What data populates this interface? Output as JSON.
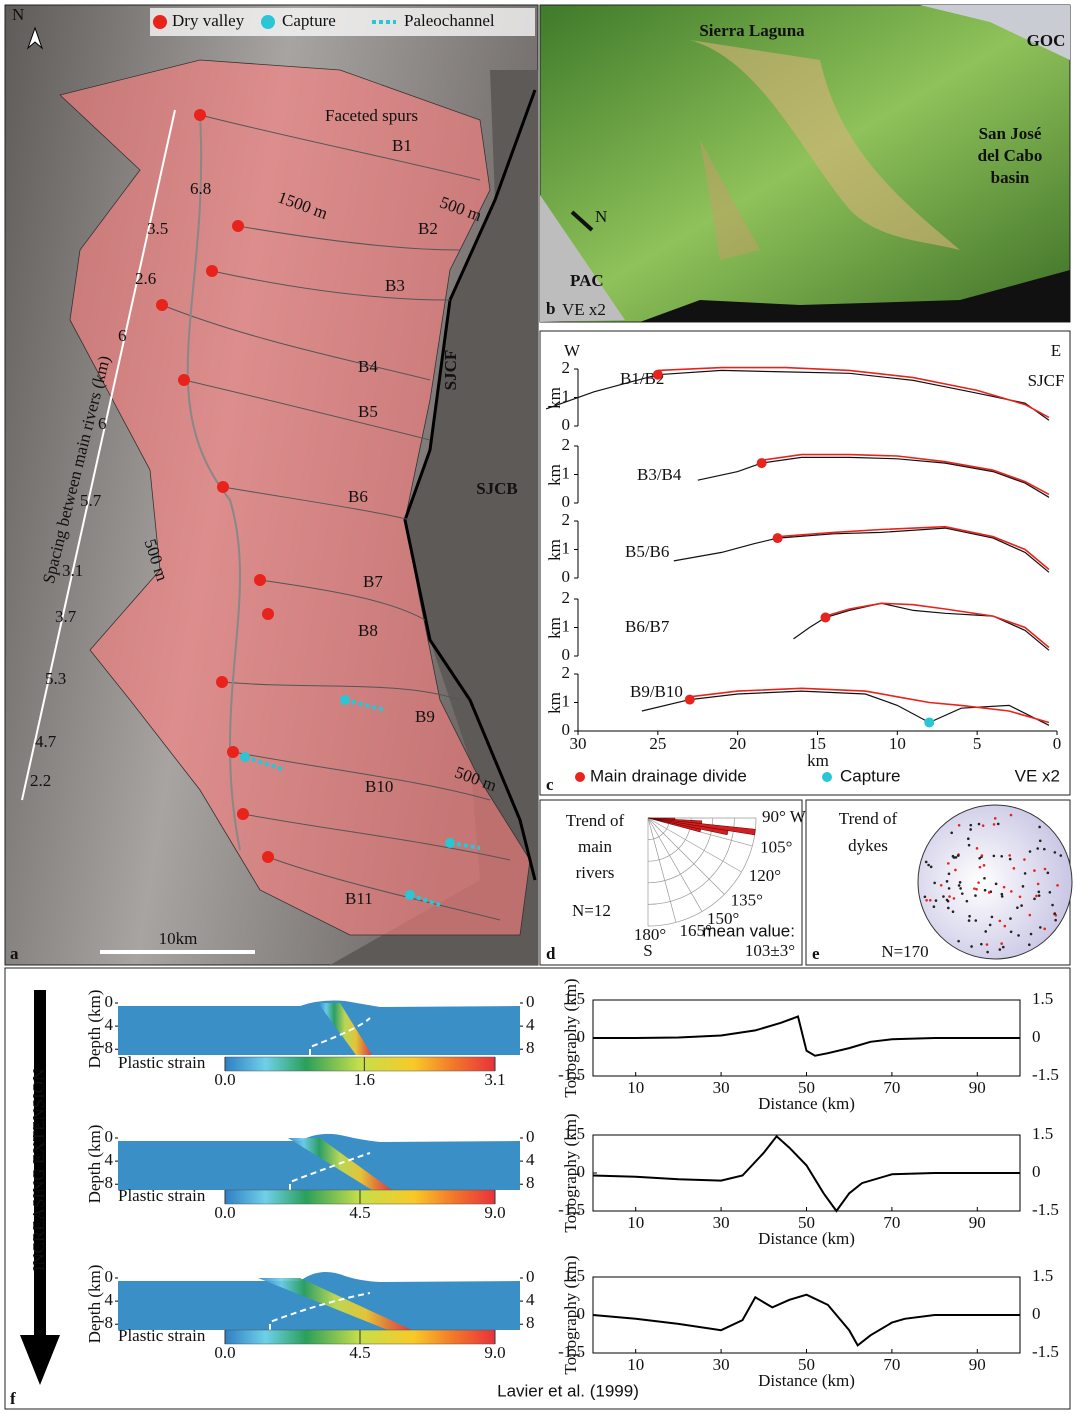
{
  "panel_a": {
    "letter": "a",
    "legend": [
      "Dry valley",
      "Capture",
      "Paleochannel"
    ],
    "north": "N",
    "faceted_spurs": "Faceted spurs",
    "basins": [
      "B1",
      "B2",
      "B3",
      "B4",
      "B5",
      "B6",
      "B7",
      "B8",
      "B9",
      "B10",
      "B11"
    ],
    "contours": [
      "1500 m",
      "500 m",
      "500 m",
      "500 m"
    ],
    "fault": "SJCF",
    "basin": "SJCB",
    "spacing_title": "Spacing between main rivers (km)",
    "spacing": [
      6.8,
      3.5,
      2.6,
      6,
      6,
      5.7,
      3.1,
      3.7,
      5.3,
      4.7,
      2.2
    ],
    "scale_bar": "10km"
  },
  "panel_b": {
    "letter": "b",
    "title": "Sierra Laguna",
    "goc": "GOC",
    "basin": [
      "San José",
      "del Cabo",
      "basin"
    ],
    "north": "N",
    "pac": "PAC",
    "exaggeration": "VE x2"
  },
  "panel_c": {
    "letter": "c",
    "west": "W",
    "east": "E",
    "fault": "SJCF",
    "legend": [
      "Main drainage divide",
      "Capture"
    ],
    "exaggeration": "VE x2"
  },
  "panel_d": {
    "letter": "d",
    "title": [
      "Trend of",
      "main",
      "rivers"
    ],
    "n": "N=12",
    "angles": [
      {
        "value": 90,
        "label": "90° W"
      },
      {
        "value": 105,
        "label": "105°"
      },
      {
        "value": 120,
        "label": "120°"
      },
      {
        "value": 135,
        "label": "135°"
      },
      {
        "value": 150,
        "label": "150°"
      },
      {
        "value": 165,
        "label": "165°"
      },
      {
        "value": 180,
        "label": "180°"
      }
    ],
    "south": "S",
    "mean_label": "mean value:",
    "mean": "103±3°",
    "bins": [
      90,
      93,
      96,
      99,
      102,
      105
    ],
    "counts": [
      1,
      2,
      4,
      3,
      2
    ],
    "rlim": [
      0,
      4
    ]
  },
  "panel_e": {
    "letter": "e",
    "title": [
      "Trend of",
      "dykes"
    ],
    "n": "N=170"
  },
  "panel_f": {
    "letter": "f",
    "arrow_label": "INCREASING EXTENSION",
    "credit": "Lavier et al. (1999)",
    "models": [
      {
        "depth_label": "Depth (km)",
        "depth_lim": [
          0,
          9
        ],
        "depth_ticks": [
          0,
          4,
          8
        ],
        "colorbar_label": "Plastic strain",
        "colorbar_lim": [
          0,
          3.1
        ],
        "colorbar_ticks": [
          {
            "value": 0,
            "label": "0.0"
          },
          1.6,
          3.1
        ]
      },
      {
        "depth_label": "Depth (km)",
        "depth_lim": [
          0,
          9
        ],
        "depth_ticks": [
          0,
          4,
          8
        ],
        "colorbar_label": "Plastic strain",
        "colorbar_lim": [
          0,
          9
        ],
        "colorbar_ticks": [
          {
            "value": 0,
            "label": "0.0"
          },
          4.5,
          {
            "value": 9,
            "label": "9.0"
          }
        ]
      },
      {
        "depth_label": "Depth (km)",
        "depth_lim": [
          0,
          9
        ],
        "depth_ticks": [
          0,
          4,
          8
        ],
        "colorbar_label": "Plastic strain",
        "colorbar_lim": [
          0,
          9
        ],
        "colorbar_ticks": [
          {
            "value": 0,
            "label": "0.0"
          },
          4.5,
          {
            "value": 9,
            "label": "9.0"
          }
        ]
      }
    ]
  },
  "chart_data": [
    {
      "type": "line",
      "title": "B1/B2",
      "y_label": "km",
      "xlim": [
        30,
        0
      ],
      "ylim": [
        0,
        2
      ],
      "yticks": [
        0,
        1,
        2
      ],
      "x": [
        32,
        29,
        25,
        21,
        17,
        13,
        9,
        5,
        2,
        0.5
      ],
      "series": [
        {
          "color": "#111111",
          "values": [
            0.6,
            1.2,
            1.8,
            1.95,
            1.9,
            1.85,
            1.6,
            1.15,
            0.8,
            0.2
          ]
        },
        {
          "color": "#e8231c",
          "values": [
            null,
            null,
            1.95,
            2.05,
            2.05,
            1.95,
            1.7,
            1.25,
            0.75,
            0.3
          ]
        }
      ],
      "divide": {
        "x": 25,
        "value": 1.8
      }
    },
    {
      "type": "line",
      "title": "B3/B4",
      "y_label": "km",
      "xlim": [
        30,
        0
      ],
      "ylim": [
        0,
        2
      ],
      "yticks": [
        0,
        1,
        2
      ],
      "x": [
        22.5,
        20,
        18.5,
        16,
        13,
        10,
        7,
        4,
        2,
        0.5
      ],
      "series": [
        {
          "color": "#111111",
          "values": [
            0.8,
            1.1,
            1.4,
            1.6,
            1.6,
            1.55,
            1.4,
            1.1,
            0.7,
            0.2
          ]
        },
        {
          "color": "#e8231c",
          "values": [
            null,
            null,
            1.5,
            1.7,
            1.7,
            1.65,
            1.45,
            1.15,
            0.75,
            0.3
          ]
        }
      ],
      "divide": {
        "x": 18.5,
        "value": 1.4
      }
    },
    {
      "type": "line",
      "title": "B5/B6",
      "y_label": "km",
      "xlim": [
        30,
        0
      ],
      "ylim": [
        0,
        2
      ],
      "yticks": [
        0,
        1,
        2
      ],
      "x": [
        24,
        21,
        19,
        17.5,
        14,
        11,
        7,
        4,
        2,
        0.5
      ],
      "series": [
        {
          "color": "#111111",
          "values": [
            0.6,
            0.9,
            1.2,
            1.4,
            1.55,
            1.6,
            1.75,
            1.4,
            0.9,
            0.2
          ]
        },
        {
          "color": "#e8231c",
          "values": [
            null,
            null,
            null,
            1.45,
            1.6,
            1.7,
            1.8,
            1.45,
            1.0,
            0.3
          ]
        }
      ],
      "divide": {
        "x": 17.5,
        "value": 1.4
      }
    },
    {
      "type": "line",
      "title": "B6/B7",
      "y_label": "km",
      "xlim": [
        30,
        0
      ],
      "ylim": [
        0,
        2
      ],
      "yticks": [
        0,
        1,
        2
      ],
      "x": [
        16.5,
        15.5,
        14.5,
        13,
        11,
        9,
        7,
        4,
        2,
        0.5
      ],
      "series": [
        {
          "color": "#111111",
          "values": [
            0.6,
            1.0,
            1.35,
            1.6,
            1.85,
            1.6,
            1.5,
            1.4,
            0.9,
            0.2
          ]
        },
        {
          "color": "#e8231c",
          "values": [
            null,
            null,
            1.4,
            1.65,
            1.85,
            1.8,
            1.65,
            1.4,
            1.0,
            0.3
          ]
        }
      ],
      "divide": {
        "x": 14.5,
        "value": 1.35
      }
    },
    {
      "type": "line",
      "title": "B9/B10",
      "y_label": "km",
      "x_label": "km",
      "xlim": [
        30,
        0
      ],
      "ylim": [
        0,
        2
      ],
      "yticks": [
        0,
        1,
        2
      ],
      "xticks": [
        30,
        25,
        20,
        15,
        10,
        5,
        0
      ],
      "x": [
        26,
        23,
        20,
        16,
        12,
        10,
        8,
        6,
        3,
        0.5
      ],
      "series": [
        {
          "color": "#111111",
          "values": [
            0.7,
            1.1,
            1.3,
            1.4,
            1.3,
            0.9,
            0.3,
            0.8,
            0.9,
            0.2
          ]
        },
        {
          "color": "#e8231c",
          "values": [
            null,
            1.2,
            1.4,
            1.5,
            1.4,
            1.2,
            1.0,
            0.9,
            0.7,
            0.3
          ]
        }
      ],
      "divide": {
        "x": 23,
        "value": 1.1
      },
      "capture": {
        "x": 8,
        "value": 0.3
      }
    },
    {
      "type": "line",
      "x_label": "Distance (km)",
      "y_label": "Topography (km)",
      "xlim": [
        0,
        100
      ],
      "ylim": [
        -1.5,
        1.5
      ],
      "xticks": [
        10,
        30,
        50,
        70,
        90
      ],
      "yticks": [
        1.5,
        0,
        -1.5
      ],
      "y2lim": [
        -1.5,
        1.5
      ],
      "y2ticks": [
        1.5,
        0,
        -1.5
      ],
      "color": "#000000",
      "x": [
        0,
        10,
        20,
        30,
        38,
        44,
        48,
        50,
        52,
        55,
        60,
        65,
        70,
        80,
        90,
        100
      ],
      "values": [
        0,
        0,
        0.02,
        0.1,
        0.3,
        0.6,
        0.85,
        -0.5,
        -0.7,
        -0.6,
        -0.4,
        -0.15,
        -0.05,
        0,
        0,
        0
      ]
    },
    {
      "type": "line",
      "x_label": "Distance (km)",
      "y_label": "Topography (km)",
      "xlim": [
        0,
        100
      ],
      "ylim": [
        -1.5,
        1.5
      ],
      "xticks": [
        10,
        30,
        50,
        70,
        90
      ],
      "yticks": [
        1.5,
        0,
        -1.5
      ],
      "y2lim": [
        -1.5,
        1.5
      ],
      "y2ticks": [
        1.5,
        0,
        -1.5
      ],
      "color": "#000000",
      "x": [
        0,
        10,
        20,
        30,
        35,
        40,
        43,
        46,
        50,
        54,
        57,
        60,
        63,
        70,
        80,
        90,
        100
      ],
      "values": [
        -0.1,
        -0.15,
        -0.25,
        -0.3,
        -0.1,
        0.8,
        1.45,
        1.0,
        0.3,
        -0.8,
        -1.5,
        -0.8,
        -0.4,
        -0.05,
        0,
        0,
        0
      ]
    },
    {
      "type": "line",
      "x_label": "Distance (km)",
      "y_label": "Topography (km)",
      "xlim": [
        0,
        100
      ],
      "ylim": [
        -1.5,
        1.5
      ],
      "xticks": [
        10,
        30,
        50,
        70,
        90
      ],
      "yticks": [
        1.5,
        0,
        -1.5
      ],
      "y2lim": [
        -1.5,
        1.5
      ],
      "y2ticks": [
        1.5,
        0,
        -1.5
      ],
      "color": "#000000",
      "x": [
        0,
        10,
        20,
        30,
        35,
        38,
        42,
        46,
        50,
        55,
        60,
        62,
        65,
        70,
        73,
        80,
        100
      ],
      "values": [
        0,
        -0.15,
        -0.35,
        -0.6,
        -0.2,
        0.7,
        0.3,
        0.6,
        0.8,
        0.4,
        -0.6,
        -1.2,
        -0.8,
        -0.3,
        -0.15,
        0,
        0
      ]
    }
  ]
}
